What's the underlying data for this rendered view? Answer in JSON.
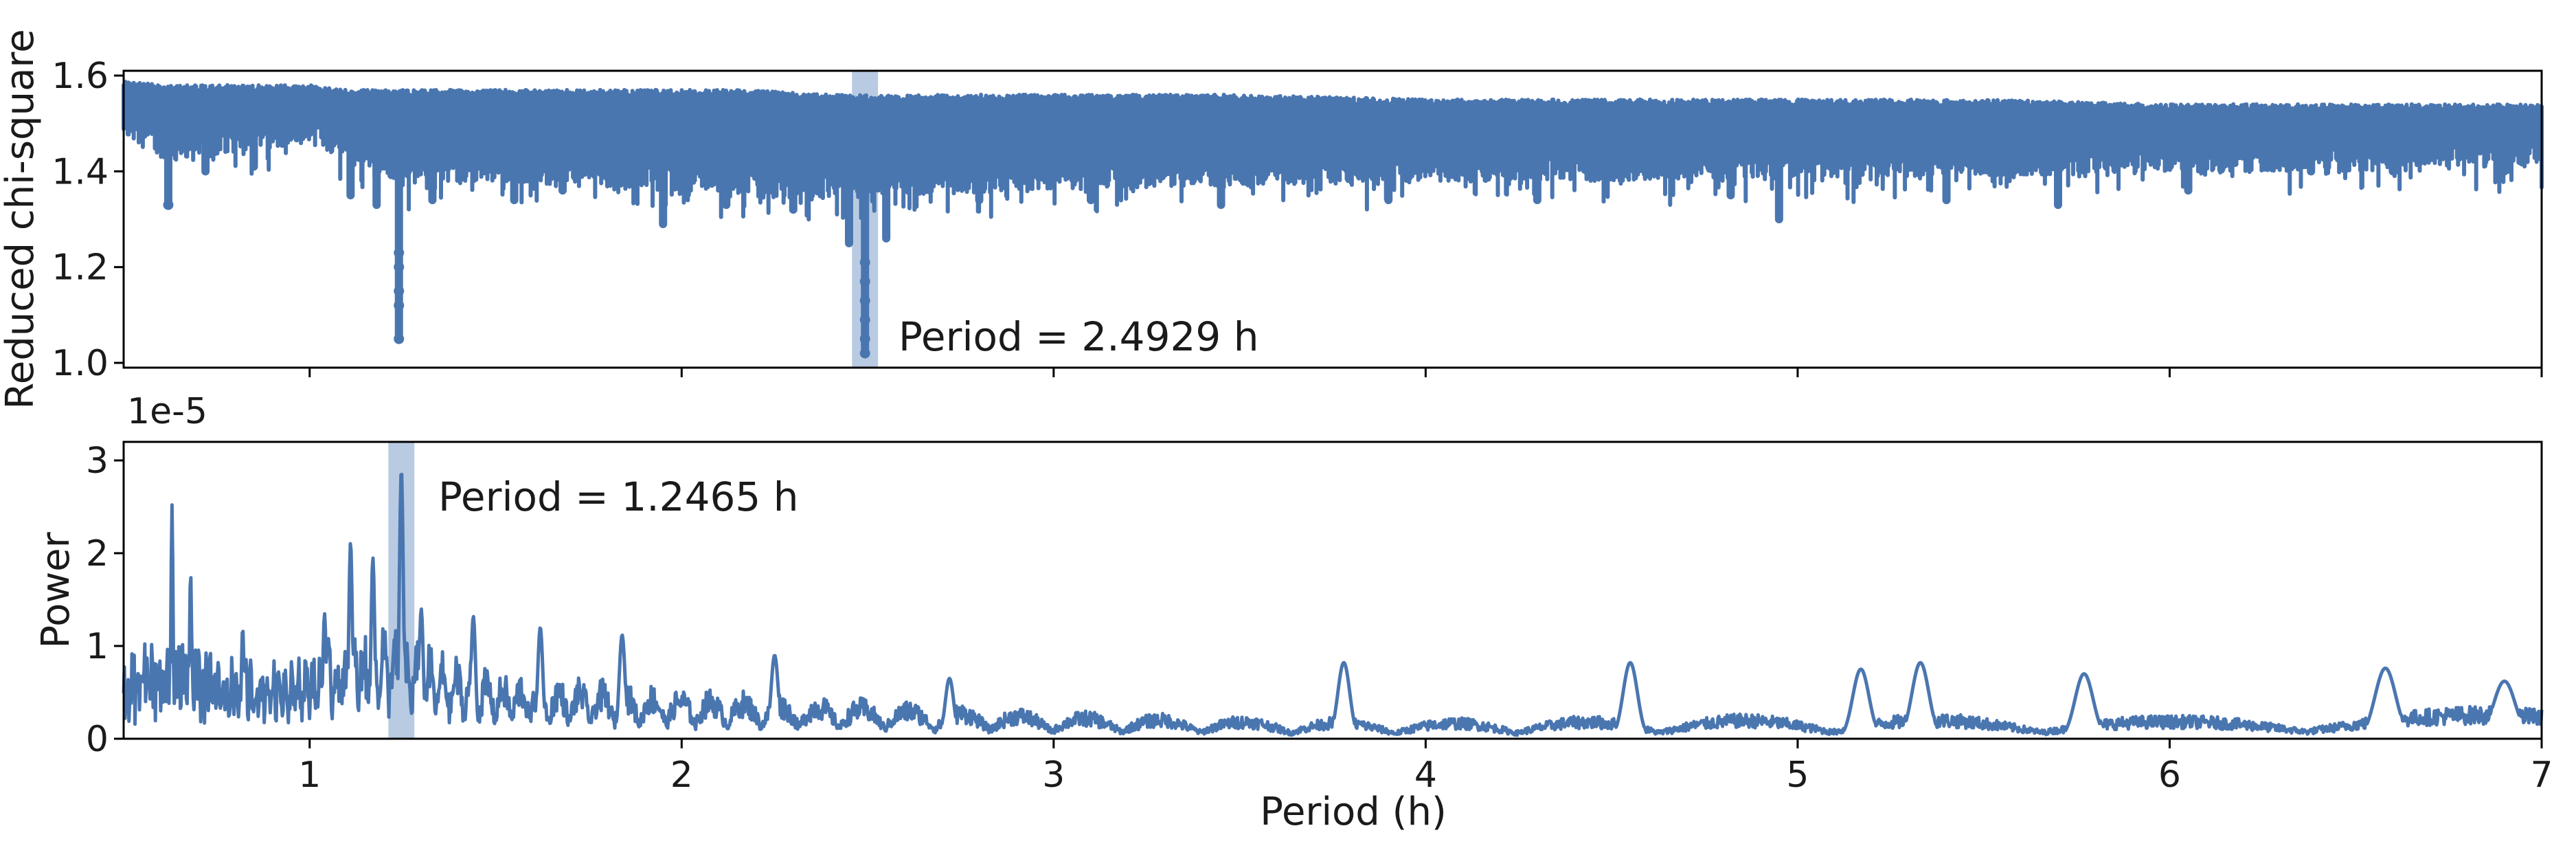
{
  "chart_data": [
    {
      "type": "scatter",
      "panel": "top",
      "ylabel": "Reduced chi-square",
      "xlim": [
        0.5,
        7.0
      ],
      "ylim": [
        0.99,
        1.61
      ],
      "y_ticks": [
        "1.0",
        "1.2",
        "1.4",
        "1.6"
      ],
      "y_tick_values": [
        1.0,
        1.2,
        1.4,
        1.6
      ],
      "x_ticks_shown": false,
      "color": "#4a76b0",
      "highlight": {
        "x": 2.4929,
        "half_width": 0.035,
        "color": "#b9cbe2"
      },
      "annotation": "Period = 2.4929 h",
      "envelope": {
        "x": [
          0.5,
          0.6,
          0.7,
          0.8,
          0.9,
          1.0,
          1.1,
          1.2,
          1.3,
          1.5,
          1.8,
          2.0,
          2.2,
          2.4,
          2.6,
          3.0,
          3.5,
          4.0,
          4.5,
          5.0,
          5.5,
          6.0,
          6.5,
          7.0
        ],
        "upper": [
          1.59,
          1.58,
          1.58,
          1.58,
          1.58,
          1.58,
          1.57,
          1.57,
          1.57,
          1.57,
          1.57,
          1.57,
          1.57,
          1.56,
          1.56,
          1.56,
          1.56,
          1.55,
          1.55,
          1.55,
          1.55,
          1.54,
          1.54,
          1.54
        ],
        "lower": [
          1.5,
          1.46,
          1.45,
          1.47,
          1.48,
          1.49,
          1.45,
          1.41,
          1.4,
          1.41,
          1.4,
          1.39,
          1.38,
          1.37,
          1.38,
          1.39,
          1.4,
          1.41,
          1.41,
          1.42,
          1.42,
          1.43,
          1.43,
          1.44
        ]
      },
      "dips": [
        {
          "x": 0.62,
          "min": 1.33
        },
        {
          "x": 0.72,
          "min": 1.4
        },
        {
          "x": 0.85,
          "min": 1.41
        },
        {
          "x": 1.11,
          "min": 1.35
        },
        {
          "x": 1.18,
          "min": 1.33
        },
        {
          "x": 1.24,
          "min": 1.05
        },
        {
          "x": 1.33,
          "min": 1.34
        },
        {
          "x": 1.55,
          "min": 1.34
        },
        {
          "x": 1.68,
          "min": 1.36
        },
        {
          "x": 1.95,
          "min": 1.29
        },
        {
          "x": 2.12,
          "min": 1.33
        },
        {
          "x": 2.3,
          "min": 1.32
        },
        {
          "x": 2.45,
          "min": 1.25
        },
        {
          "x": 2.4929,
          "min": 1.02
        },
        {
          "x": 2.55,
          "min": 1.26
        },
        {
          "x": 2.8,
          "min": 1.34
        },
        {
          "x": 3.1,
          "min": 1.34
        },
        {
          "x": 3.45,
          "min": 1.33
        },
        {
          "x": 3.9,
          "min": 1.34
        },
        {
          "x": 4.3,
          "min": 1.34
        },
        {
          "x": 4.82,
          "min": 1.35
        },
        {
          "x": 4.95,
          "min": 1.3
        },
        {
          "x": 5.4,
          "min": 1.34
        },
        {
          "x": 5.7,
          "min": 1.33
        },
        {
          "x": 6.05,
          "min": 1.36
        },
        {
          "x": 6.38,
          "min": 1.4
        },
        {
          "x": 6.6,
          "min": 1.4
        },
        {
          "x": 6.9,
          "min": 1.4
        }
      ],
      "outliers": [
        {
          "x": 1.24,
          "y": 1.23
        },
        {
          "x": 1.24,
          "y": 1.2
        },
        {
          "x": 1.24,
          "y": 1.15
        },
        {
          "x": 1.24,
          "y": 1.12
        },
        {
          "x": 1.24,
          "y": 1.05
        },
        {
          "x": 2.4929,
          "y": 1.21
        },
        {
          "x": 2.4929,
          "y": 1.17
        },
        {
          "x": 2.4929,
          "y": 1.13
        },
        {
          "x": 2.4929,
          "y": 1.09
        },
        {
          "x": 2.4929,
          "y": 1.05
        },
        {
          "x": 2.4929,
          "y": 1.02
        },
        {
          "x": 0.62,
          "y": 1.33
        }
      ]
    },
    {
      "type": "line",
      "panel": "bottom",
      "xlabel": "Period (h)",
      "ylabel": "Power",
      "y_scale_label": "1e-5",
      "xlim": [
        0.5,
        7.0
      ],
      "ylim": [
        0,
        3.2
      ],
      "x_ticks": [
        "1",
        "2",
        "3",
        "4",
        "5",
        "6",
        "7"
      ],
      "x_tick_values": [
        1,
        2,
        3,
        4,
        5,
        6,
        7
      ],
      "y_ticks": [
        "0",
        "1",
        "2",
        "3"
      ],
      "y_tick_values": [
        0,
        1,
        2,
        3
      ],
      "color": "#4a76b0",
      "highlight": {
        "x": 1.2465,
        "half_width": 0.035,
        "color": "#b9cbe2"
      },
      "annotation": "Period = 1.2465 h",
      "peaks": [
        {
          "x": 0.63,
          "y": 2.52
        },
        {
          "x": 0.68,
          "y": 1.8
        },
        {
          "x": 0.82,
          "y": 1.2
        },
        {
          "x": 1.04,
          "y": 1.35
        },
        {
          "x": 1.11,
          "y": 2.12
        },
        {
          "x": 1.17,
          "y": 1.95
        },
        {
          "x": 1.2465,
          "y": 2.9
        },
        {
          "x": 1.3,
          "y": 1.4
        },
        {
          "x": 1.44,
          "y": 1.32
        },
        {
          "x": 1.62,
          "y": 1.2
        },
        {
          "x": 1.84,
          "y": 1.12
        },
        {
          "x": 2.25,
          "y": 0.9
        },
        {
          "x": 2.72,
          "y": 0.65
        },
        {
          "x": 3.78,
          "y": 0.82
        },
        {
          "x": 4.55,
          "y": 0.82
        },
        {
          "x": 5.17,
          "y": 0.75
        },
        {
          "x": 5.33,
          "y": 0.82
        },
        {
          "x": 5.77,
          "y": 0.7
        },
        {
          "x": 6.58,
          "y": 0.76
        },
        {
          "x": 6.9,
          "y": 0.62
        }
      ],
      "baseline": {
        "x": [
          0.5,
          0.6,
          0.8,
          1.0,
          1.2,
          1.3,
          1.5,
          2.0,
          2.5,
          3.0,
          3.5,
          4.0,
          4.5,
          5.0,
          5.5,
          6.0,
          6.5,
          7.0
        ],
        "level": [
          0.7,
          0.95,
          0.7,
          0.8,
          1.1,
          0.85,
          0.6,
          0.45,
          0.35,
          0.25,
          0.2,
          0.18,
          0.2,
          0.22,
          0.22,
          0.2,
          0.25,
          0.3
        ]
      }
    }
  ]
}
